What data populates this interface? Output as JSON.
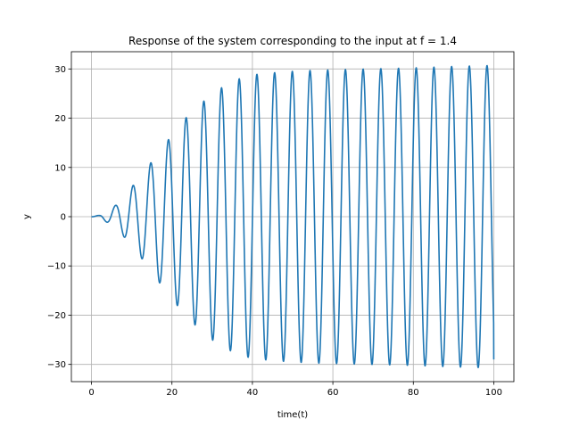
{
  "chart_data": {
    "type": "line",
    "title": "Response of the system corresponding to the input at f = 1.4",
    "xlabel": "time(t)",
    "ylabel": "y",
    "xlim": [
      -5,
      105
    ],
    "ylim": [
      -33.5,
      33.5
    ],
    "xticks": [
      0,
      20,
      40,
      60,
      80,
      100
    ],
    "yticks": [
      -30,
      -20,
      -10,
      0,
      10,
      20,
      30
    ],
    "xtick_labels": [
      "0",
      "20",
      "40",
      "60",
      "80",
      "100"
    ],
    "ytick_labels": [
      "−30",
      "−20",
      "−10",
      "0",
      "10",
      "20",
      "30"
    ],
    "grid": true,
    "series_color": "#1f77b4",
    "series": [
      {
        "description": "Sinusoidal response with growing amplitude saturating near 30; oscillation period about 4.4 time units",
        "x_range": [
          0,
          100
        ],
        "period": 4.4,
        "amplitude_envelope": {
          "t": [
            0,
            2,
            4,
            6,
            8,
            10,
            12,
            14,
            16,
            18,
            20,
            22,
            24,
            26,
            28,
            30,
            32,
            34,
            36,
            38,
            40,
            45,
            50,
            55,
            60,
            70,
            80,
            90,
            100
          ],
          "amp": [
            0,
            0.3,
            1.2,
            2.3,
            4.0,
            6.0,
            8.0,
            10.0,
            12.5,
            14.5,
            16.5,
            18.8,
            20.5,
            22.2,
            23.5,
            25.0,
            26.0,
            27.0,
            27.8,
            28.3,
            28.8,
            29.2,
            29.5,
            29.7,
            29.8,
            30.0,
            30.2,
            30.5,
            30.7
          ]
        },
        "end_value": -29
      }
    ]
  }
}
